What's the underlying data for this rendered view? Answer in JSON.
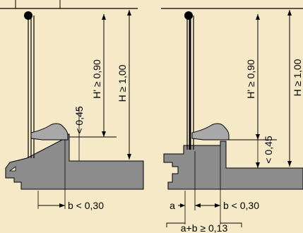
{
  "colors": {
    "background": "#f6e9c7",
    "concrete": "#8c8c8c",
    "ink": "#000000",
    "shoe": "#a8a8a8"
  },
  "left_figure": {
    "h_prime_label": "H' ≥ 0,90",
    "h_label": "H ≥ 1,00",
    "step_label": "< 0,45",
    "b_label": "b < 0,30"
  },
  "right_figure": {
    "h_prime_label": "H' ≥ 0,90",
    "h_label": "H ≥ 1,00",
    "step_label": "< 0,45",
    "a_label": "a",
    "b_label": "b < 0,30",
    "sum_label": "a+b ≥ 0,13"
  }
}
